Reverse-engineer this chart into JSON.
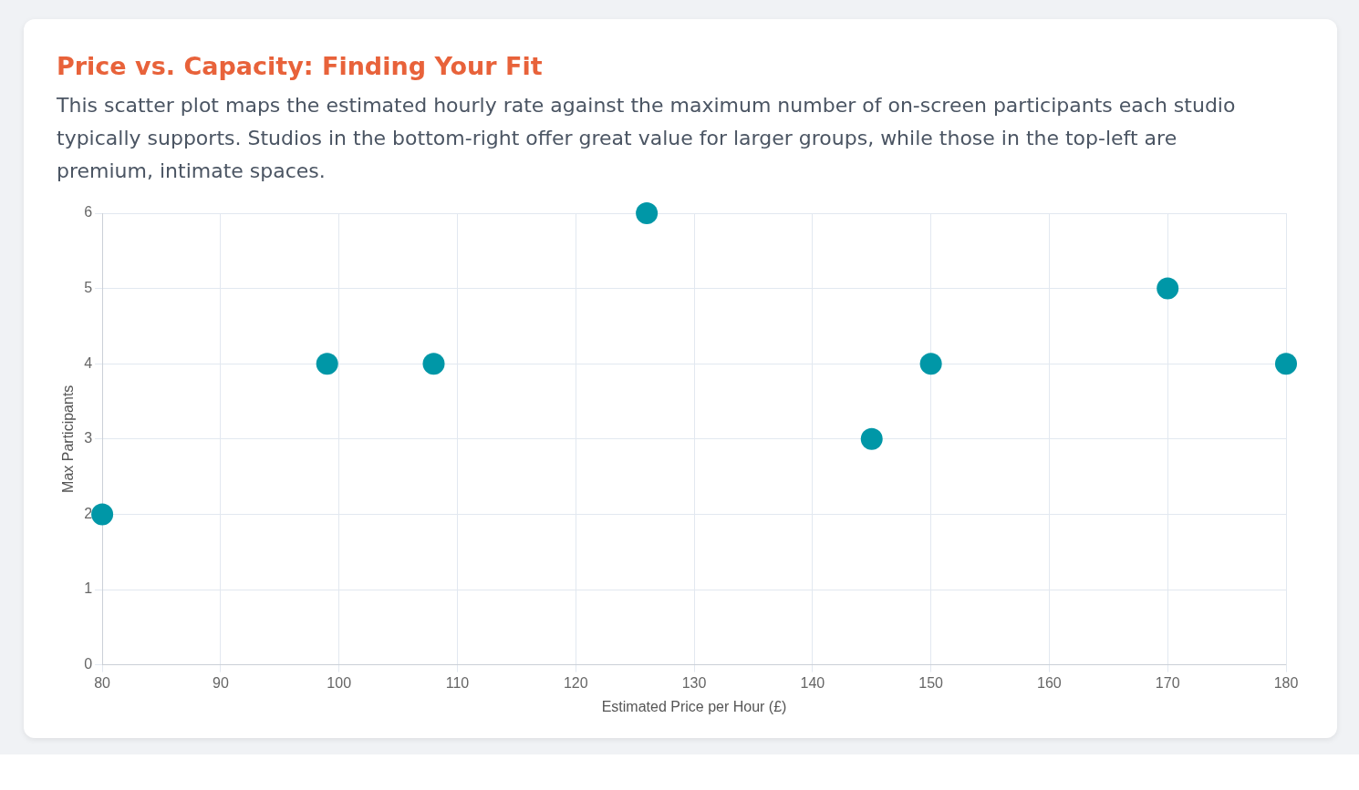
{
  "chart_data": {
    "type": "scatter",
    "title": "Price vs. Capacity: Finding Your Fit",
    "subtitle": "This scatter plot maps the estimated hourly rate against the maximum number of on-screen participants each studio typically supports. Studios in the bottom-right offer great value for larger groups, while those in the top-left are premium, intimate spaces.",
    "xlabel": "Estimated Price per Hour (£)",
    "ylabel": "Max Participants",
    "x": [
      80,
      99,
      108,
      126,
      145,
      150,
      170,
      180
    ],
    "series": [
      {
        "color": "#0097a7",
        "values": [
          2,
          4,
          4,
          6,
          3,
          4,
          5,
          4
        ]
      }
    ],
    "xlim": [
      80,
      180
    ],
    "xticks": [
      80,
      90,
      100,
      110,
      120,
      130,
      140,
      150,
      160,
      170,
      180
    ],
    "ylim": [
      0,
      6
    ],
    "yticks": [
      0,
      1,
      2,
      3,
      4,
      5,
      6
    ],
    "grid": true,
    "legend": false,
    "marker": "circle"
  }
}
